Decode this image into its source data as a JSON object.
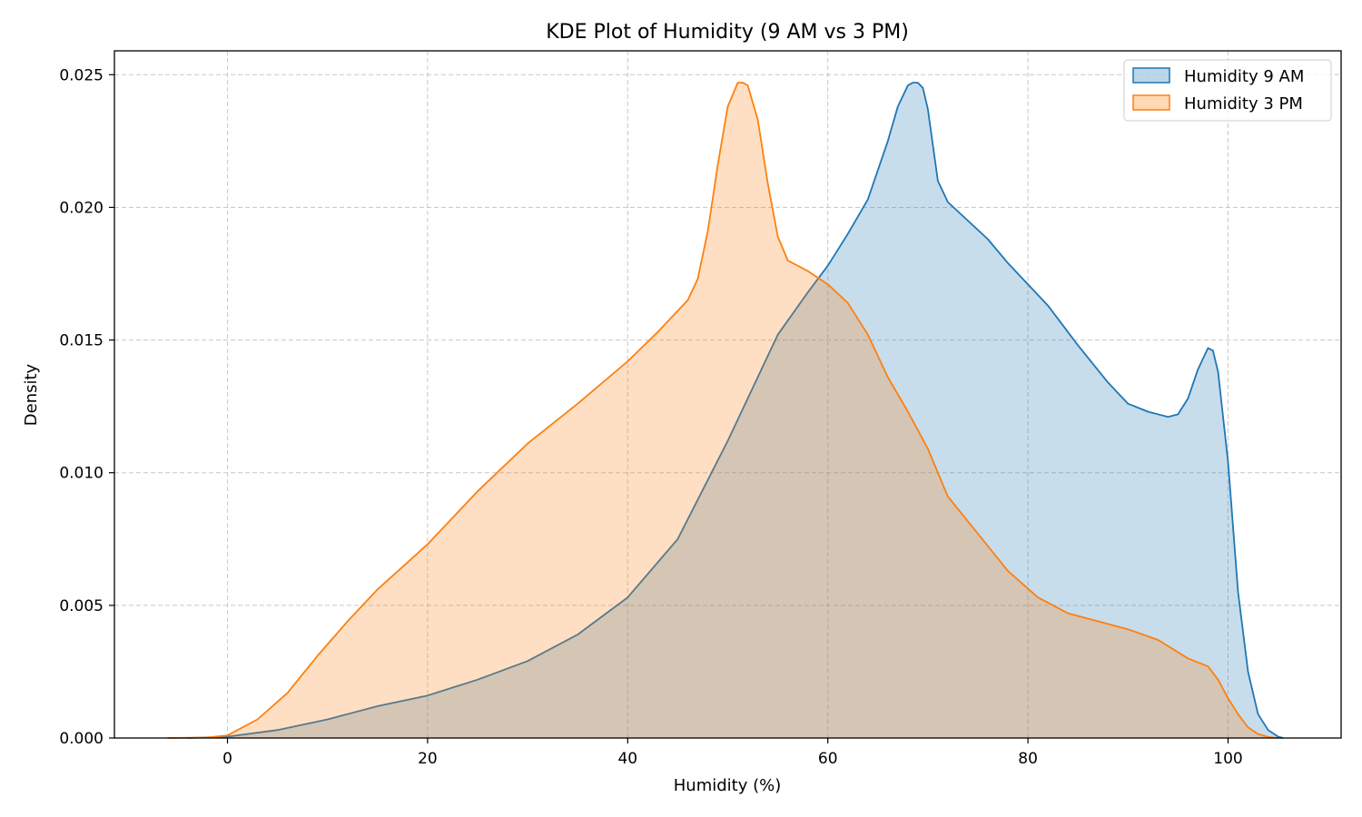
{
  "chart_data": {
    "type": "area",
    "title": "KDE Plot of Humidity (9 AM vs 3 PM)",
    "xlabel": "Humidity (%)",
    "ylabel": "Density",
    "xlim": [
      -11.3,
      111.3
    ],
    "ylim": [
      0,
      0.0259
    ],
    "xticks": [
      0,
      20,
      40,
      60,
      80,
      100
    ],
    "xtick_labels": [
      "0",
      "20",
      "40",
      "60",
      "80",
      "100"
    ],
    "yticks": [
      0,
      0.005,
      0.01,
      0.015,
      0.02,
      0.025
    ],
    "ytick_labels": [
      "0.000",
      "0.005",
      "0.010",
      "0.015",
      "0.020",
      "0.025"
    ],
    "grid": true,
    "legend_position": "top-right",
    "series": [
      {
        "name": "Humidity 9 AM",
        "line_color": "#1f77b4",
        "fill_color": "#1f77b4",
        "fill_alpha": 0.25,
        "x": [
          -4,
          0,
          5,
          10,
          15,
          20,
          25,
          30,
          35,
          40,
          45,
          50,
          55,
          58,
          60,
          62,
          64,
          66,
          67,
          68,
          68.5,
          69,
          69.5,
          70,
          71,
          72,
          74,
          76,
          78,
          80,
          82,
          85,
          88,
          90,
          92,
          94,
          95,
          96,
          97,
          98,
          98.5,
          99,
          100,
          101,
          102,
          103,
          104,
          105,
          105.5
        ],
        "y": [
          0,
          5e-05,
          0.0003,
          0.0007,
          0.0012,
          0.0016,
          0.0022,
          0.0029,
          0.0039,
          0.0053,
          0.0075,
          0.0112,
          0.0152,
          0.0168,
          0.0178,
          0.019,
          0.0203,
          0.0225,
          0.0238,
          0.0246,
          0.0247,
          0.0247,
          0.0245,
          0.0237,
          0.021,
          0.0202,
          0.0195,
          0.0188,
          0.0179,
          0.0171,
          0.0163,
          0.0148,
          0.0134,
          0.0126,
          0.0123,
          0.0121,
          0.0122,
          0.0128,
          0.0139,
          0.0147,
          0.0146,
          0.0138,
          0.0104,
          0.0055,
          0.0025,
          0.0009,
          0.0003,
          5e-05,
          0
        ]
      },
      {
        "name": "Humidity 3 PM",
        "line_color": "#ff7f0e",
        "fill_color": "#ff7f0e",
        "fill_alpha": 0.25,
        "x": [
          -6,
          -2,
          0,
          3,
          6,
          9,
          12,
          15,
          20,
          25,
          30,
          35,
          40,
          43,
          46,
          47,
          48,
          49,
          50,
          51,
          51.5,
          52,
          53,
          54,
          55,
          56,
          58,
          60,
          62,
          64,
          66,
          68,
          70,
          72,
          75,
          78,
          81,
          84,
          87,
          90,
          93,
          96,
          98,
          99,
          100,
          101,
          102,
          103,
          104,
          105
        ],
        "y": [
          0,
          2e-05,
          0.0001,
          0.0007,
          0.0017,
          0.0031,
          0.0044,
          0.0056,
          0.0073,
          0.0093,
          0.0111,
          0.0126,
          0.0142,
          0.0153,
          0.0165,
          0.0173,
          0.0191,
          0.0216,
          0.0238,
          0.0247,
          0.0247,
          0.0246,
          0.0233,
          0.0209,
          0.0189,
          0.018,
          0.0176,
          0.0171,
          0.0164,
          0.0152,
          0.0136,
          0.0123,
          0.0109,
          0.0091,
          0.0077,
          0.0063,
          0.0053,
          0.0047,
          0.0044,
          0.0041,
          0.0037,
          0.003,
          0.0027,
          0.0022,
          0.0015,
          0.0009,
          0.0004,
          0.00015,
          4e-05,
          0
        ]
      }
    ]
  }
}
